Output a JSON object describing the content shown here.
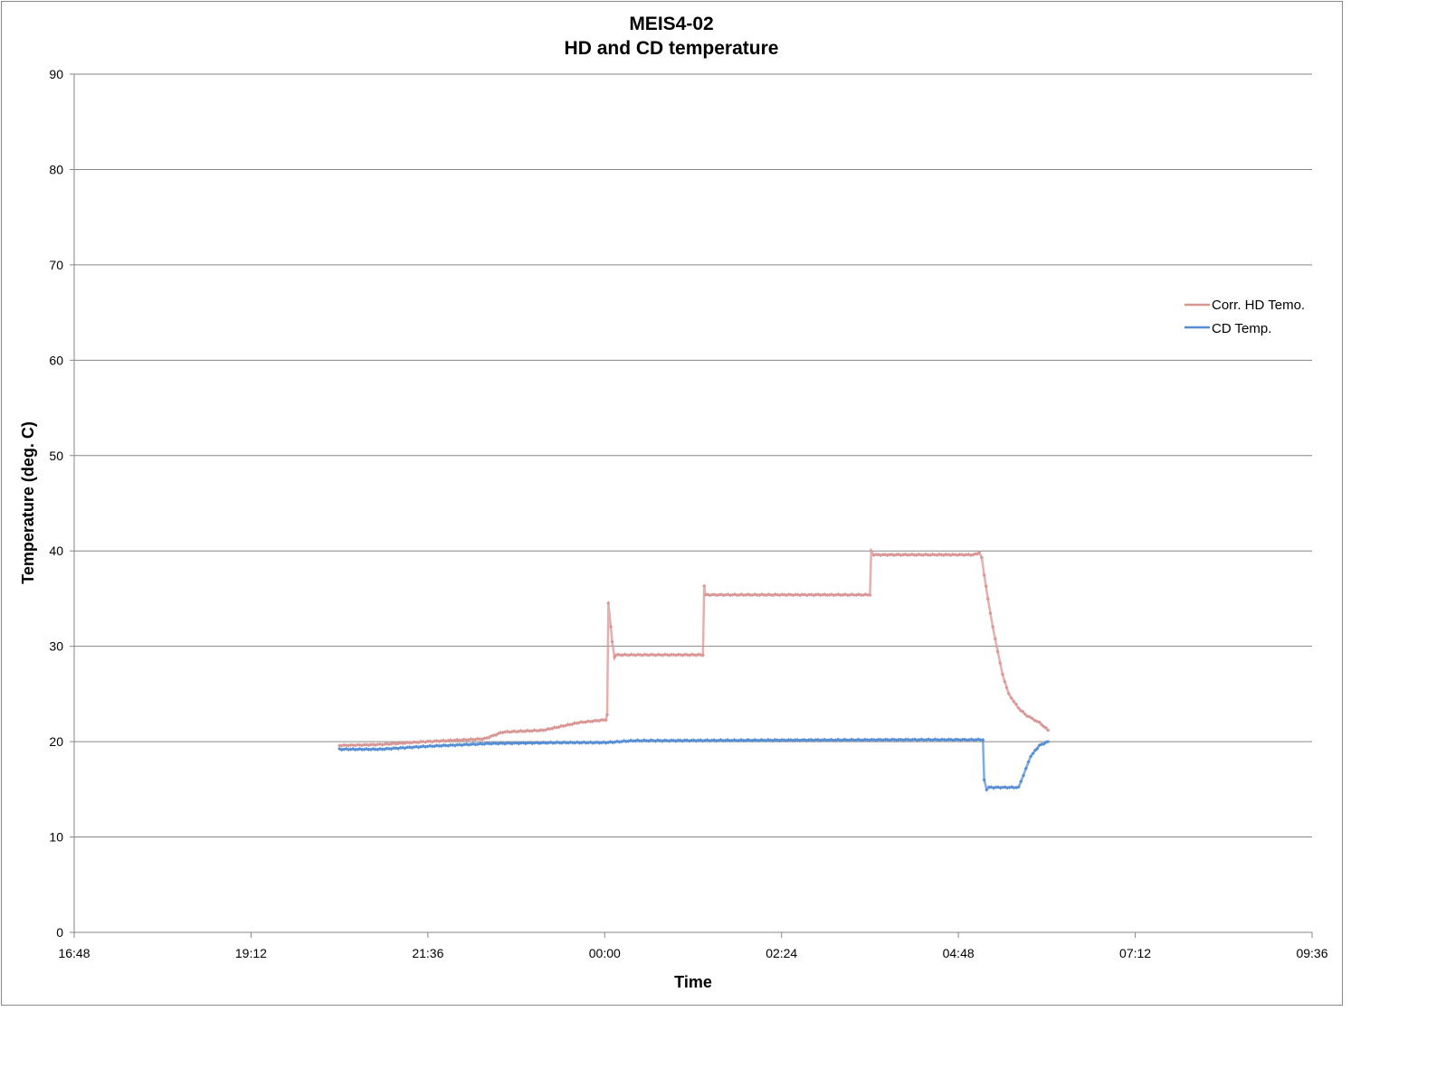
{
  "chart_data": {
    "type": "line",
    "title": "MEIS4-02",
    "subtitle": "HD and CD temperature",
    "xlabel": "Time",
    "ylabel": "Temperature (deg. C)",
    "xlim": [
      "16:48",
      "09:36"
    ],
    "ylim": [
      0,
      90
    ],
    "x_ticks": [
      "16:48",
      "19:12",
      "21:36",
      "00:00",
      "02:24",
      "04:48",
      "07:12",
      "09:36"
    ],
    "y_ticks": [
      0,
      10,
      20,
      30,
      40,
      50,
      60,
      70,
      80,
      90
    ],
    "grid": "horizontal",
    "legend": "right",
    "series": [
      {
        "name": "Corr. HD Temo.",
        "color": "#d99694",
        "x": [
          "20:24",
          "20:57",
          "21:34",
          "22:22",
          "22:37",
          "23:10",
          "23:39",
          "00:01",
          "00:02",
          "00:03",
          "00:05",
          "00:06",
          "00:08",
          "00:09",
          "01:20",
          "01:21",
          "01:22",
          "03:36",
          "03:37",
          "03:39",
          "05:00",
          "05:05",
          "05:07",
          "05:09",
          "05:12",
          "05:16",
          "05:20",
          "05:24",
          "05:29",
          "05:37",
          "05:44",
          "05:54",
          "06:01"
        ],
        "y": [
          19.6,
          19.7,
          20.0,
          20.3,
          21.0,
          21.2,
          22.0,
          22.3,
          22.8,
          34.5,
          32.0,
          30.5,
          28.8,
          29.1,
          29.1,
          36.3,
          35.4,
          35.4,
          40.0,
          39.6,
          39.6,
          39.8,
          39.3,
          37.5,
          35.0,
          32.0,
          29.5,
          27.0,
          25.0,
          23.5,
          22.7,
          22.0,
          21.2
        ]
      },
      {
        "name": "CD Temp.",
        "color": "#558ed5",
        "x": [
          "20:24",
          "20:57",
          "21:34",
          "22:26",
          "23:25",
          "00:01",
          "00:23",
          "04:05",
          "05:08",
          "05:09",
          "05:11",
          "05:13",
          "05:37",
          "05:41",
          "05:47",
          "05:54",
          "06:01"
        ],
        "y": [
          19.2,
          19.2,
          19.5,
          19.8,
          19.9,
          19.9,
          20.1,
          20.2,
          20.2,
          16.0,
          15.0,
          15.2,
          15.2,
          16.5,
          18.5,
          19.6,
          20.0
        ]
      }
    ]
  }
}
